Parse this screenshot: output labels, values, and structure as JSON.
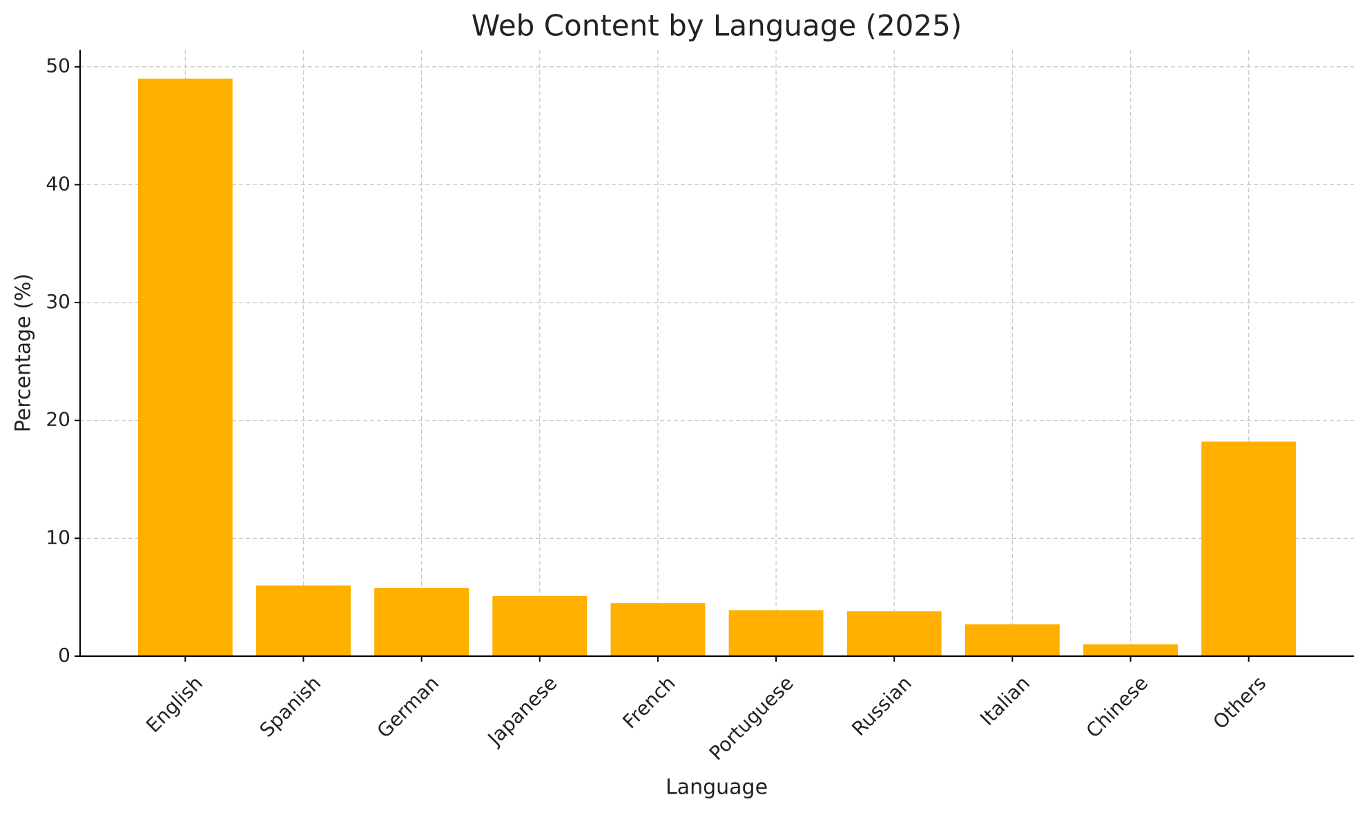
{
  "chart_data": {
    "type": "bar",
    "title": "Web Content by Language (2025)",
    "x_label": "Language",
    "y_label": "Percentage (%)",
    "categories": [
      "English",
      "Spanish",
      "German",
      "Japanese",
      "French",
      "Portuguese",
      "Russian",
      "Italian",
      "Chinese",
      "Others"
    ],
    "values": [
      49,
      6.0,
      5.8,
      5.1,
      4.5,
      3.9,
      3.8,
      2.7,
      1.0,
      18.2
    ],
    "color": "#ffb000",
    "ylim": [
      0,
      51.45
    ],
    "yticks": [
      0,
      10,
      20,
      30,
      40,
      50
    ],
    "grid": true
  }
}
